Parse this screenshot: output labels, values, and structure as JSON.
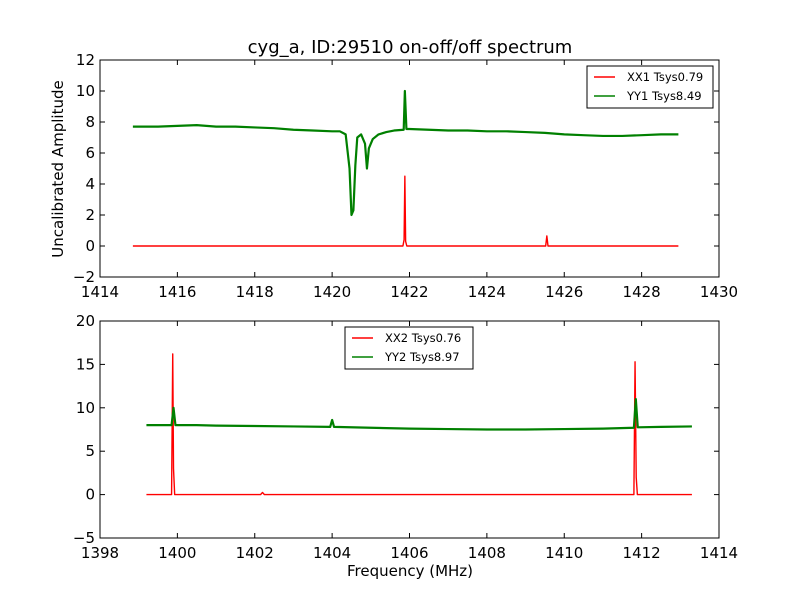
{
  "figure": {
    "title": "cyg_a, ID:29510 on-off/off spectrum",
    "ylabel": "Uncalibrated Amplitude",
    "xlabel": "Frequency (MHz)"
  },
  "chart_data": [
    {
      "type": "line",
      "title": "cyg_a, ID:29510 on-off/off spectrum",
      "ylabel": "Uncalibrated Amplitude",
      "xlabel": "",
      "xlim": [
        1414,
        1430
      ],
      "ylim": [
        -2,
        12
      ],
      "xticks": [
        1414,
        1416,
        1418,
        1420,
        1422,
        1424,
        1426,
        1428,
        1430
      ],
      "yticks": [
        -2,
        0,
        2,
        4,
        6,
        8,
        10,
        12
      ],
      "legend_placement": "top-right",
      "grid": false,
      "series": [
        {
          "name": "XX1 Tsys0.79",
          "color": "#ff0000",
          "x": [
            1414.85,
            1421.83,
            1421.86,
            1421.88,
            1421.9,
            1421.93,
            1425.52,
            1425.55,
            1425.58,
            1428.95
          ],
          "y": [
            0.0,
            0.0,
            0.4,
            4.5,
            0.3,
            0.0,
            0.0,
            0.65,
            0.0,
            0.0
          ]
        },
        {
          "name": "YY1 Tsys8.49",
          "color": "#008000",
          "x": [
            1414.85,
            1415.5,
            1416.0,
            1416.5,
            1417.0,
            1417.5,
            1418.0,
            1418.5,
            1419.0,
            1419.5,
            1420.0,
            1420.2,
            1420.35,
            1420.45,
            1420.5,
            1420.55,
            1420.6,
            1420.65,
            1420.75,
            1420.85,
            1420.9,
            1420.95,
            1421.05,
            1421.2,
            1421.4,
            1421.6,
            1421.85,
            1421.88,
            1421.92,
            1422.0,
            1422.5,
            1423.0,
            1423.5,
            1424.0,
            1424.5,
            1425.0,
            1425.5,
            1426.0,
            1426.5,
            1427.0,
            1427.5,
            1428.0,
            1428.5,
            1428.95
          ],
          "y": [
            7.7,
            7.7,
            7.75,
            7.8,
            7.7,
            7.7,
            7.65,
            7.6,
            7.5,
            7.45,
            7.4,
            7.4,
            7.2,
            5.0,
            2.0,
            2.3,
            5.2,
            7.0,
            7.2,
            6.6,
            5.0,
            6.3,
            6.9,
            7.2,
            7.35,
            7.45,
            7.5,
            10.0,
            7.55,
            7.55,
            7.5,
            7.45,
            7.45,
            7.4,
            7.4,
            7.35,
            7.3,
            7.2,
            7.15,
            7.1,
            7.1,
            7.15,
            7.2,
            7.2
          ]
        }
      ]
    },
    {
      "type": "line",
      "title": "",
      "ylabel": "",
      "xlabel": "Frequency (MHz)",
      "xlim": [
        1398,
        1414
      ],
      "ylim": [
        -5,
        20
      ],
      "xticks": [
        1398,
        1400,
        1402,
        1404,
        1406,
        1408,
        1410,
        1412,
        1414
      ],
      "yticks": [
        -5,
        0,
        5,
        10,
        15,
        20
      ],
      "legend_placement": "top-center",
      "grid": false,
      "series": [
        {
          "name": "XX2 Tsys0.76",
          "color": "#ff0000",
          "x": [
            1399.2,
            1399.85,
            1399.88,
            1399.9,
            1399.93,
            1402.15,
            1402.2,
            1402.25,
            1411.8,
            1411.83,
            1411.86,
            1411.89,
            1413.3
          ],
          "y": [
            0.0,
            0.0,
            16.2,
            3.0,
            0.0,
            0.0,
            0.25,
            0.0,
            0.0,
            15.3,
            2.0,
            0.0,
            0.0
          ]
        },
        {
          "name": "YY2 Tsys8.97",
          "color": "#008000",
          "x": [
            1399.2,
            1399.5,
            1399.85,
            1399.9,
            1399.95,
            1400.5,
            1401.0,
            1402.0,
            1403.0,
            1403.95,
            1404.0,
            1404.05,
            1405.0,
            1406.0,
            1407.0,
            1408.0,
            1409.0,
            1410.0,
            1411.0,
            1411.8,
            1411.85,
            1411.9,
            1412.5,
            1413.3
          ],
          "y": [
            8.0,
            8.0,
            8.0,
            10.0,
            8.0,
            8.0,
            7.95,
            7.9,
            7.85,
            7.8,
            8.6,
            7.8,
            7.7,
            7.6,
            7.55,
            7.5,
            7.5,
            7.55,
            7.6,
            7.7,
            11.0,
            7.75,
            7.8,
            7.85
          ]
        }
      ]
    }
  ]
}
